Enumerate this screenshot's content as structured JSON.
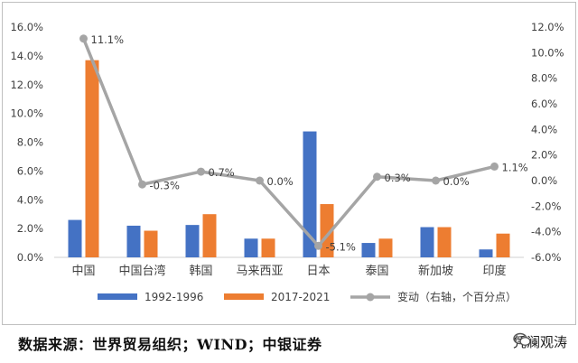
{
  "chart_data": {
    "type": "bar",
    "categories": [
      "中国",
      "中国台湾",
      "韩国",
      "马来西亚",
      "日本",
      "泰国",
      "新加坡",
      "印度"
    ],
    "series": [
      {
        "name": "1992-1996",
        "axis": "left",
        "kind": "bar",
        "color": "#4472c4",
        "values": [
          2.6,
          2.2,
          2.25,
          1.3,
          8.75,
          1.0,
          2.1,
          0.55
        ]
      },
      {
        "name": "2017-2021",
        "axis": "left",
        "kind": "bar",
        "color": "#ed7d31",
        "values": [
          13.7,
          1.85,
          3.0,
          1.3,
          3.7,
          1.3,
          2.1,
          1.65
        ]
      },
      {
        "name": "变动（右轴，个百分点）",
        "axis": "right",
        "kind": "line",
        "color": "#a5a5a5",
        "values": [
          11.1,
          -0.3,
          0.7,
          0.0,
          -5.1,
          0.3,
          0.0,
          1.1
        ],
        "data_labels": [
          "11.1%",
          "-0.3%",
          "0.7%",
          "0.0%",
          "-5.1%",
          "0.3%",
          "0.0%",
          "1.1%"
        ]
      }
    ],
    "ylim_left": [
      0,
      16
    ],
    "ylim_right": [
      -6,
      12
    ],
    "left_ticks": [
      "0.0%",
      "2.0%",
      "4.0%",
      "6.0%",
      "8.0%",
      "10.0%",
      "12.0%",
      "14.0%",
      "16.0%"
    ],
    "right_ticks": [
      "-6.0%",
      "-4.0%",
      "-2.0%",
      "0.0%",
      "2.0%",
      "4.0%",
      "6.0%",
      "8.0%",
      "10.0%",
      "12.0%"
    ],
    "grid": false,
    "legend_position": "bottom"
  },
  "source_text": "数据来源：世界贸易组织；WIND；中银证券",
  "watermark_text": "凭澜观涛",
  "watermark_icon": "wechat-icon"
}
